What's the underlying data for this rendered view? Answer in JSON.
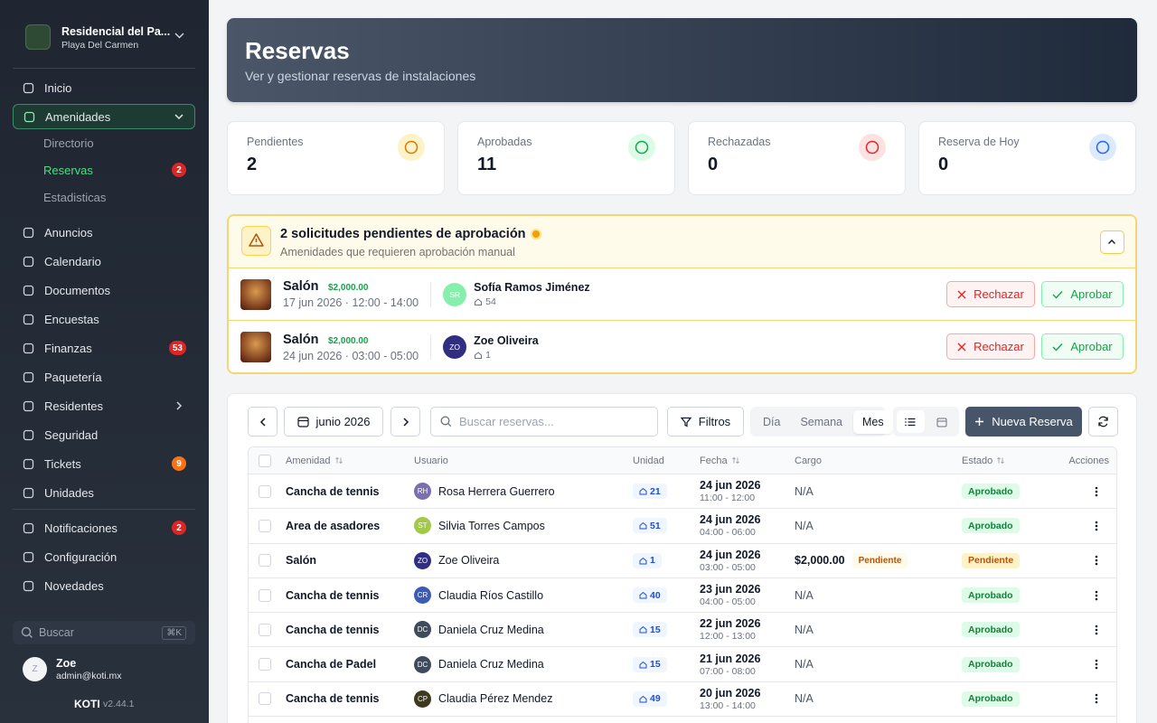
{
  "sidebar": {
    "org_name": "Residencial del Pa...",
    "org_location": "Playa Del Carmen",
    "nav": [
      {
        "label": "Inicio"
      },
      {
        "label": "Amenidades",
        "active": true,
        "expanded": true,
        "children": [
          {
            "label": "Directorio"
          },
          {
            "label": "Reservas",
            "active": true,
            "badge": 2,
            "badge_color": "#dc2626"
          },
          {
            "label": "Estadisticas"
          }
        ]
      },
      {
        "label": "Anuncios"
      },
      {
        "label": "Calendario"
      },
      {
        "label": "Documentos"
      },
      {
        "label": "Encuestas"
      },
      {
        "label": "Finanzas",
        "badge": 53,
        "badge_color": "#dc2626"
      },
      {
        "label": "Paquetería"
      },
      {
        "label": "Residentes",
        "expandable": true
      },
      {
        "label": "Seguridad"
      },
      {
        "label": "Tickets",
        "badge": 9,
        "badge_color": "#f97316"
      },
      {
        "label": "Unidades"
      }
    ],
    "nav_secondary": [
      {
        "label": "Notificaciones",
        "badge": 2,
        "badge_color": "#dc2626"
      },
      {
        "label": "Configuración"
      },
      {
        "label": "Novedades"
      }
    ],
    "search_placeholder": "Buscar",
    "search_shortcut": "⌘K",
    "user": {
      "initial": "Z",
      "name": "Zoe",
      "email": "admin@koti.mx"
    },
    "brand": "KOTI",
    "version": "v2.44.1"
  },
  "header": {
    "title": "Reservas",
    "subtitle": "Ver y gestionar reservas de instalaciones"
  },
  "stats": [
    {
      "label": "Pendientes",
      "value": 2,
      "color": "#d97706",
      "bg": "#fef3c7"
    },
    {
      "label": "Aprobadas",
      "value": 11,
      "color": "#16a34a",
      "bg": "#dcfce7"
    },
    {
      "label": "Rechazadas",
      "value": 0,
      "color": "#dc2626",
      "bg": "#fee2e2"
    },
    {
      "label": "Reserva de Hoy",
      "value": 0,
      "color": "#2563eb",
      "bg": "#dbeafe"
    }
  ],
  "pending": {
    "title": "2 solicitudes pendientes de aprobación",
    "subtitle": "Amenidades que requieren aprobación manual",
    "reject_label": "Rechazar",
    "approve_label": "Aprobar",
    "items": [
      {
        "amenity": "Salón",
        "price": "$2,000.00",
        "date": "17 jun 2026 · 12:00 - 14:00",
        "initials": "SR",
        "avatar_color": "#86efac",
        "user": "Sofía Ramos Jiménez",
        "unit": "54"
      },
      {
        "amenity": "Salón",
        "price": "$2,000.00",
        "date": "24 jun 2026 · 03:00 - 05:00",
        "initials": "ZO",
        "avatar_color": "#312e81",
        "user": "Zoe Oliveira",
        "unit": "1"
      }
    ]
  },
  "toolbar": {
    "month": "junio 2026",
    "search_placeholder": "Buscar reservas...",
    "filters": "Filtros",
    "views": [
      "Día",
      "Semana",
      "Mes"
    ],
    "active_view": 2,
    "new_button": "Nueva Reserva"
  },
  "table": {
    "columns": [
      "Amenidad",
      "Usuario",
      "Unidad",
      "Fecha",
      "Cargo",
      "Estado",
      "Acciones"
    ],
    "rows": [
      {
        "amenity": "Cancha de tennis",
        "initials": "RH",
        "avatar_color": "#7c6fb0",
        "user": "Rosa Herrera Guerrero",
        "unit": "21",
        "date": "24 jun 2026",
        "time": "11:00 - 12:00",
        "charge": "N/A",
        "status": "Aprobado"
      },
      {
        "amenity": "Area de asadores",
        "initials": "ST",
        "avatar_color": "#a3c94a",
        "user": "Silvia Torres Campos",
        "unit": "51",
        "date": "24 jun 2026",
        "time": "04:00 - 06:00",
        "charge": "N/A",
        "status": "Aprobado"
      },
      {
        "amenity": "Salón",
        "initials": "ZO",
        "avatar_color": "#312e81",
        "user": "Zoe Oliveira",
        "unit": "1",
        "date": "24 jun 2026",
        "time": "03:00 - 05:00",
        "charge": "$2,000.00",
        "charge_badge": "Pendiente",
        "status": "Pendiente"
      },
      {
        "amenity": "Cancha de tennis",
        "initials": "CR",
        "avatar_color": "#3b5bb5",
        "user": "Claudia Ríos Castillo",
        "unit": "40",
        "date": "23 jun 2026",
        "time": "04:00 - 05:00",
        "charge": "N/A",
        "status": "Aprobado"
      },
      {
        "amenity": "Cancha de tennis",
        "initials": "DC",
        "avatar_color": "#3f4a5c",
        "user": "Daniela Cruz Medina",
        "unit": "15",
        "date": "22 jun 2026",
        "time": "12:00 - 13:00",
        "charge": "N/A",
        "status": "Aprobado"
      },
      {
        "amenity": "Cancha de Padel",
        "initials": "DC",
        "avatar_color": "#3f4a5c",
        "user": "Daniela Cruz Medina",
        "unit": "15",
        "date": "21 jun 2026",
        "time": "07:00 - 08:00",
        "charge": "N/A",
        "status": "Aprobado"
      },
      {
        "amenity": "Cancha de tennis",
        "initials": "CP",
        "avatar_color": "#3d3a1e",
        "user": "Claudia Pérez Mendez",
        "unit": "49",
        "date": "20 jun 2026",
        "time": "13:00 - 14:00",
        "charge": "N/A",
        "status": "Aprobado"
      }
    ]
  }
}
